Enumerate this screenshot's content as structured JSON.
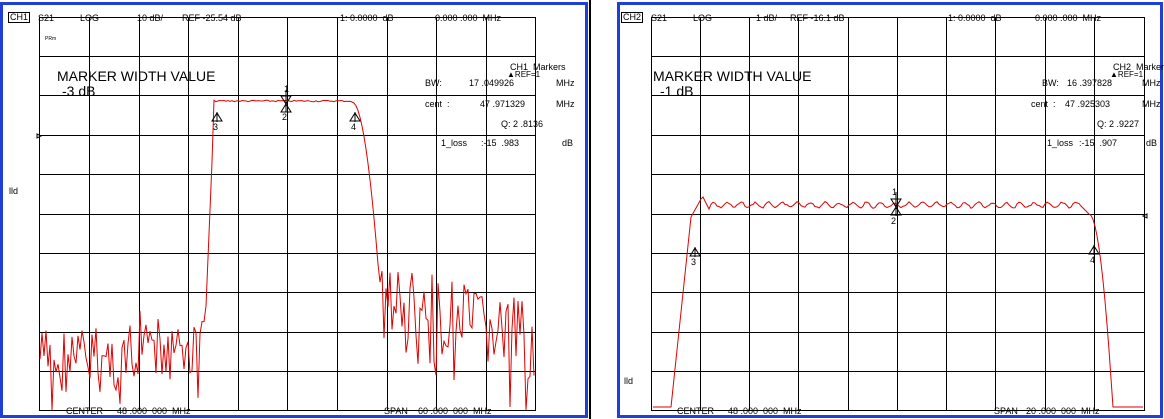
{
  "divider_color": "#000000",
  "border_color": "#1f3fd8",
  "trace_color": "#e00000",
  "panels": [
    {
      "channel": "CH1",
      "param": "S21",
      "format": "LOG",
      "scale": "10 dB/",
      "ref": "REF -25.54 dB",
      "marker_readout": "1: 0.0000  dB",
      "marker_freq": "0.000 .000  MHz",
      "marker_title": "MARKER WIDTH VALUE",
      "marker_sub": "-3 dB",
      "markers_header": "CH1  Markers",
      "markers_ref": "▲REF=1",
      "bw_label": "BW:",
      "bw_value": "17 .049926",
      "bw_unit": "MHz",
      "cent_label": "cent  :",
      "cent_value": "47 .971329",
      "cent_unit": "MHz",
      "q_label": "Q:",
      "q_value": "2 .8136",
      "loss_label": "1_loss",
      "loss_value": ":-15  .983",
      "loss_unit": "dB",
      "center_label": "CENTER",
      "center_value": "48 .000  000  MHz",
      "span_label": "SPAN",
      "span_value": "60 .000  000  MHz",
      "side_label": "lld",
      "tiny_label": "PRm"
    },
    {
      "channel": "CH2",
      "param": "S21",
      "format": "LOG",
      "scale": "1 dB/",
      "ref": "REF -16.1 dB",
      "marker_readout": "1: 0.0000  dB",
      "marker_freq": "0.000 .000  MHz",
      "marker_title": "MARKER WIDTH VALUE",
      "marker_sub": "-1 dB",
      "markers_header": "CH2  Markers",
      "markers_ref": "▲REF=1",
      "bw_label": "BW:",
      "bw_value": "16 .397828",
      "bw_unit": "MHz",
      "cent_label": "cent  :",
      "cent_value": "47 .925303",
      "cent_unit": "MHz",
      "q_label": "Q:",
      "q_value": "2 .9227",
      "loss_label": "1_loss",
      "loss_value": ":-15  .907",
      "loss_unit": "dB",
      "center_label": "CENTER",
      "center_value": "48 .000  000  MHz",
      "span_label": "SPAN",
      "span_value": "20 .000  000  MHz",
      "side_label": "lld",
      "tiny_label": ""
    }
  ],
  "markers": [
    "1",
    "2",
    "3",
    "4"
  ]
}
